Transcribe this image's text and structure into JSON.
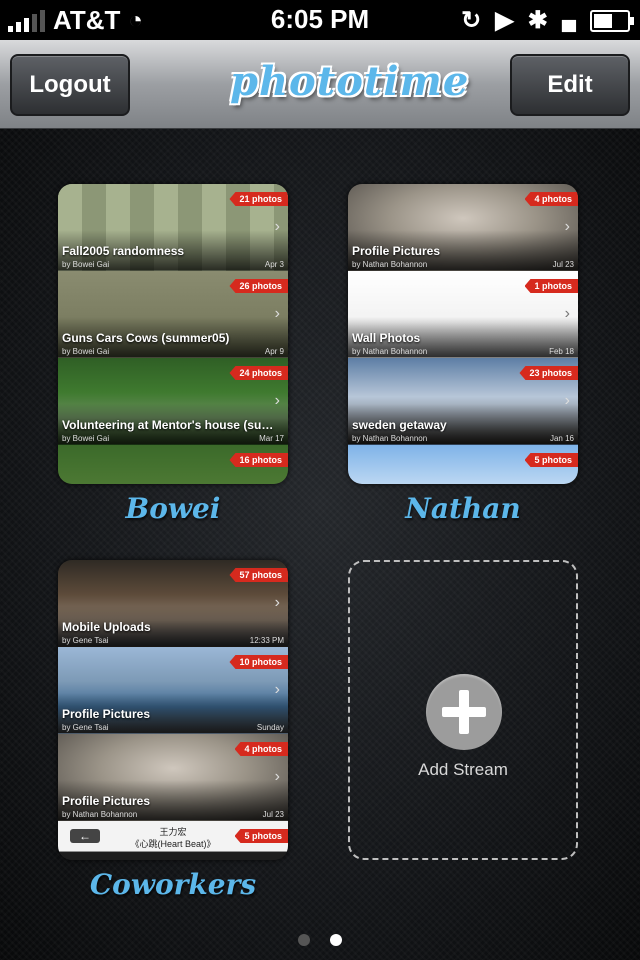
{
  "status_bar": {
    "carrier": "AT&T",
    "time": "6:05 PM"
  },
  "nav": {
    "logout_label": "Logout",
    "logo_text": "phototime",
    "edit_label": "Edit"
  },
  "streams": [
    {
      "name": "Bowei",
      "albums": [
        {
          "title": "Fall2005 randomness",
          "byline": "by Bowei Gai",
          "date": "Apr 3",
          "count": "21 photos"
        },
        {
          "title": "Guns Cars Cows (summer05)",
          "byline": "by Bowei Gai",
          "date": "Apr 9",
          "count": "26 photos"
        },
        {
          "title": "Volunteering at Mentor's house (sum...",
          "byline": "by Bowei Gai",
          "date": "Mar 17",
          "count": "24 photos"
        },
        {
          "count": "16 photos"
        }
      ]
    },
    {
      "name": "Nathan",
      "albums": [
        {
          "title": "Profile Pictures",
          "byline": "by Nathan Bohannon",
          "date": "Jul 23",
          "count": "4 photos"
        },
        {
          "title": "Wall Photos",
          "byline": "by Nathan Bohannon",
          "date": "Feb 18",
          "count": "1 photos"
        },
        {
          "title": "sweden getaway",
          "byline": "by Nathan Bohannon",
          "date": "Jan 16",
          "count": "23 photos"
        },
        {
          "count": "5 photos"
        }
      ]
    },
    {
      "name": "Coworkers",
      "albums": [
        {
          "title": "Mobile Uploads",
          "byline": "by Gene Tsai",
          "date": "12:33 PM",
          "count": "57 photos"
        },
        {
          "title": "Profile Pictures",
          "byline": "by Gene Tsai",
          "date": "Sunday",
          "count": "10 photos"
        },
        {
          "title": "Profile Pictures",
          "byline": "by Nathan Bohannon",
          "date": "Jul 23",
          "count": "4 photos"
        },
        {
          "count": "5 photos",
          "overlay_line1": "王力宏",
          "overlay_line2": "《心跳(Heart Beat)》"
        }
      ]
    }
  ],
  "add_stream": {
    "label": "Add Stream"
  },
  "page_indicator": {
    "current": 2,
    "total": 2
  }
}
